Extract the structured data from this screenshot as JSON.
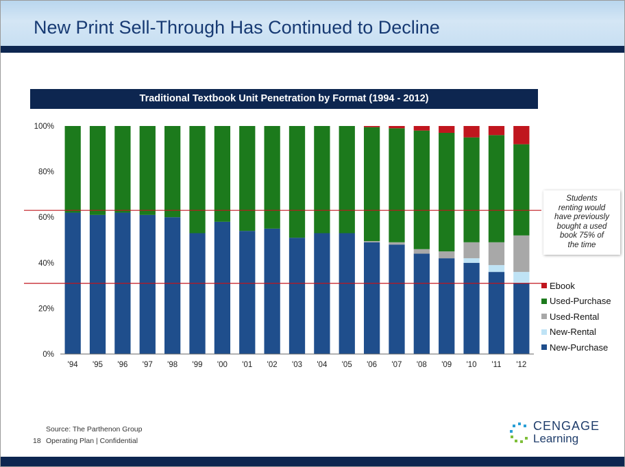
{
  "slide": {
    "title": "New Print Sell-Through Has Continued to Decline",
    "source": "Source: The Parthenon Group",
    "page_number": "18",
    "footer": "Operating Plan | Confidential",
    "logo": {
      "line1": "CENGAGE",
      "line2": "Learning"
    }
  },
  "callout": {
    "lines": [
      "Students",
      "renting would",
      "have previously",
      "bought a used",
      "book 75% of",
      "the time"
    ]
  },
  "chart_data": {
    "type": "bar",
    "stacked": true,
    "title": "Traditional Textbook Unit Penetration by Format (1994 - 2012)",
    "categories": [
      "'94",
      "'95",
      "'96",
      "'97",
      "'98",
      "'99",
      "'00",
      "'01",
      "'02",
      "'03",
      "'04",
      "'05",
      "'06",
      "'07",
      "'08",
      "'09",
      "'10",
      "'11",
      "'12"
    ],
    "y_ticks": [
      "0%",
      "20%",
      "40%",
      "60%",
      "80%",
      "100%"
    ],
    "ylim": [
      0,
      100
    ],
    "series": [
      {
        "name": "New-Purchase",
        "color": "#1f4e8c",
        "values": [
          62,
          61,
          62,
          61,
          60,
          53,
          58,
          54,
          55,
          51,
          53,
          53,
          49,
          48,
          44,
          42,
          40,
          36,
          31
        ]
      },
      {
        "name": "New-Rental",
        "color": "#bfe3f5",
        "values": [
          0,
          0,
          0,
          0,
          0,
          0,
          0,
          0,
          0,
          0,
          0,
          0,
          0,
          0,
          0,
          0,
          2,
          3,
          5
        ]
      },
      {
        "name": "Used-Rental",
        "color": "#a8a8a8",
        "values": [
          0,
          0,
          0,
          0,
          0,
          0,
          0,
          0,
          0,
          0,
          0,
          0,
          0.5,
          1,
          2,
          3,
          7,
          10,
          16
        ]
      },
      {
        "name": "Used-Purchase",
        "color": "#1c7a1c",
        "values": [
          38,
          39,
          38,
          39,
          40,
          47,
          42,
          46,
          45,
          49,
          47,
          47,
          50,
          50,
          52,
          52,
          46,
          47,
          40
        ]
      },
      {
        "name": "Ebook",
        "color": "#c0161e",
        "values": [
          0,
          0,
          0,
          0,
          0,
          0,
          0,
          0,
          0,
          0,
          0,
          0,
          0.5,
          1,
          2,
          3,
          5,
          4,
          8
        ]
      }
    ],
    "legend_order": [
      "Ebook",
      "Used-Purchase",
      "Used-Rental",
      "New-Rental",
      "New-Purchase"
    ],
    "legend_position": "right",
    "reference_lines": [
      {
        "value": 63,
        "color": "#c0161e"
      },
      {
        "value": 31,
        "color": "#c0161e"
      }
    ],
    "grid": false
  }
}
